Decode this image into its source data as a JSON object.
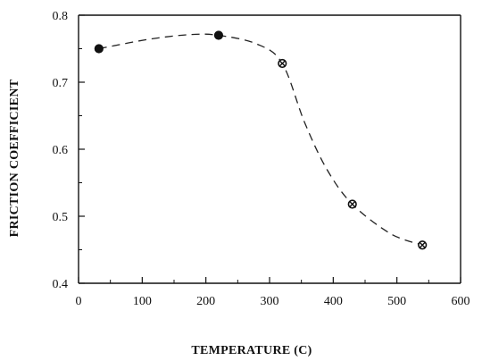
{
  "chart_data": {
    "type": "scatter",
    "title": "",
    "xlabel": "TEMPERATURE (C)",
    "ylabel": "FRICTION COEFFICIENT",
    "xlim": [
      0,
      600
    ],
    "ylim": [
      0.4,
      0.8
    ],
    "xticks": [
      0,
      100,
      200,
      300,
      400,
      500,
      600
    ],
    "xtick_labels": [
      "0",
      "100",
      "200",
      "300",
      "400",
      "500",
      "600"
    ],
    "yticks": [
      0.4,
      0.5,
      0.6,
      0.7,
      0.8
    ],
    "ytick_labels": [
      "0.4",
      "0.5",
      "0.6",
      "0.7",
      "0.8"
    ],
    "grid": false,
    "legend": "none",
    "series": [
      {
        "x": [
          32,
          220,
          320,
          430,
          540
        ],
        "y": [
          0.75,
          0.77,
          0.728,
          0.518,
          0.457
        ],
        "markers": [
          "filled",
          "filled",
          "crossed",
          "crossed",
          "crossed"
        ],
        "color": "#111111",
        "trend_line": "dashed"
      }
    ]
  }
}
